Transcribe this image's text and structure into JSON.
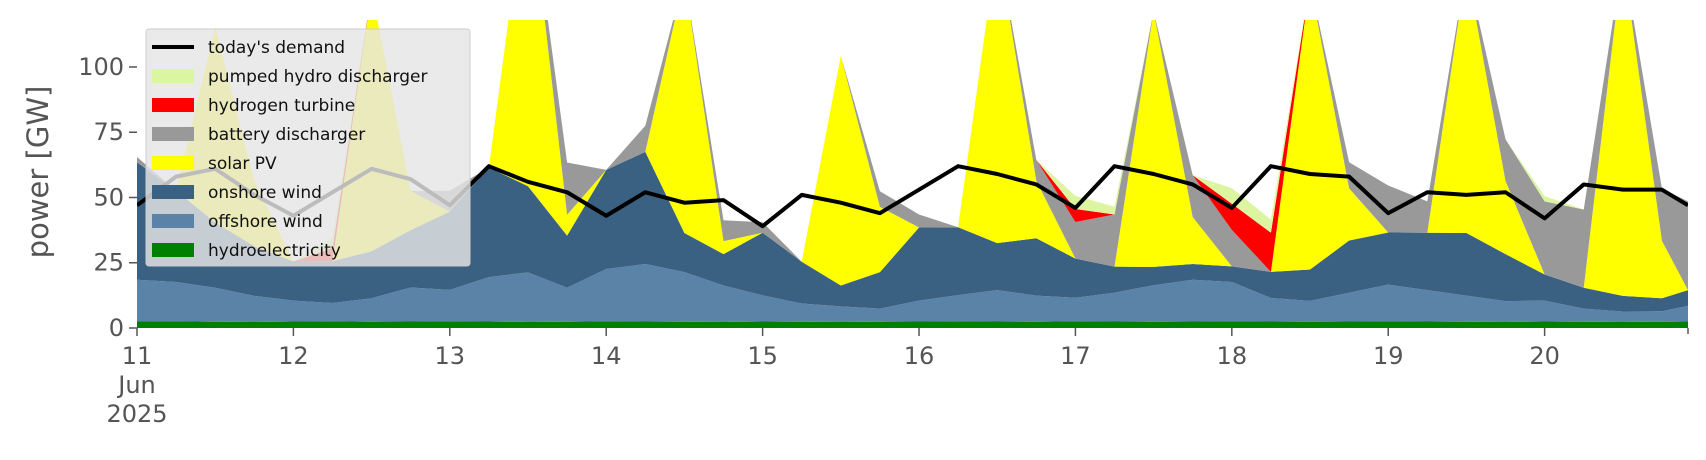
{
  "chart_data": {
    "type": "area",
    "title": "",
    "xlabel": "",
    "ylabel": "power [GW]",
    "ylim": [
      0,
      118
    ],
    "yticks": [
      0,
      25,
      50,
      75,
      100
    ],
    "ytick_labels": [
      "0",
      "25",
      "50",
      "75",
      "100"
    ],
    "x_domain": [
      "2025-06-11 00:00",
      "2025-06-20 22:00"
    ],
    "x_ticks": [
      {
        "at": "2025-06-11",
        "label": "11",
        "sublabel": "Jun",
        "sublabel2": "2025"
      },
      {
        "at": "2025-06-12",
        "label": "12"
      },
      {
        "at": "2025-06-13",
        "label": "13"
      },
      {
        "at": "2025-06-14",
        "label": "14"
      },
      {
        "at": "2025-06-15",
        "label": "15"
      },
      {
        "at": "2025-06-16",
        "label": "16"
      },
      {
        "at": "2025-06-17",
        "label": "17"
      },
      {
        "at": "2025-06-18",
        "label": "18"
      },
      {
        "at": "2025-06-19",
        "label": "19"
      },
      {
        "at": "2025-06-20",
        "label": "20"
      }
    ],
    "legend_position": "top-left",
    "x": [
      "11 00:00",
      "11 06:00",
      "11 12:00",
      "11 18:00",
      "12 00:00",
      "12 06:00",
      "12 12:00",
      "12 18:00",
      "13 00:00",
      "13 06:00",
      "13 12:00",
      "13 18:00",
      "14 00:00",
      "14 06:00",
      "14 12:00",
      "14 18:00",
      "15 00:00",
      "15 06:00",
      "15 12:00",
      "15 18:00",
      "16 00:00",
      "16 06:00",
      "16 12:00",
      "16 18:00",
      "17 00:00",
      "17 06:00",
      "17 12:00",
      "17 18:00",
      "18 00:00",
      "18 06:00",
      "18 12:00",
      "18 18:00",
      "19 00:00",
      "19 06:00",
      "19 12:00",
      "19 18:00",
      "20 00:00",
      "20 06:00",
      "20 12:00",
      "20 18:00",
      "20 22:00"
    ],
    "series": [
      {
        "name": "hydroelectricity",
        "color": "#008000",
        "values": [
          2.5,
          2.6,
          2.4,
          2.3,
          2.5,
          2.6,
          2.4,
          2.5,
          2.6,
          2.5,
          2.3,
          2.4,
          2.6,
          2.5,
          2.4,
          2.3,
          2.5,
          2.4,
          2.3,
          2.4,
          2.5,
          2.6,
          2.5,
          2.4,
          2.6,
          2.5,
          2.4,
          2.5,
          2.6,
          2.5,
          2.4,
          2.5,
          2.6,
          2.5,
          2.4,
          2.3,
          2.5,
          2.4,
          2.3,
          2.4,
          2.5
        ]
      },
      {
        "name": "offshore wind",
        "color": "#5b83a8",
        "values": [
          16,
          15,
          13,
          10,
          8,
          7,
          9,
          13,
          12,
          17,
          19,
          13,
          20,
          22,
          19,
          14,
          10,
          7,
          6,
          5,
          8,
          10,
          12,
          10,
          9,
          11,
          14,
          16,
          15,
          9,
          8,
          11,
          14,
          12,
          10,
          8,
          8,
          5,
          4,
          4,
          6
        ]
      },
      {
        "name": "onshore wind",
        "color": "#3b6182",
        "values": [
          45,
          35,
          25,
          19,
          15,
          16,
          18,
          22,
          30,
          42,
          33,
          20,
          38,
          43,
          15,
          12,
          24,
          16,
          8,
          14,
          28,
          26,
          18,
          22,
          15,
          10,
          7,
          6,
          6,
          10,
          12,
          20,
          20,
          22,
          24,
          18,
          10,
          8,
          6,
          5,
          6
        ]
      },
      {
        "name": "solar PV",
        "color": "#ffff00",
        "values": [
          0,
          0,
          75,
          25,
          0,
          0,
          100,
          15,
          0,
          0,
          120,
          8,
          0,
          0,
          98,
          5,
          0,
          0,
          88,
          25,
          0,
          0,
          115,
          22,
          0,
          0,
          98,
          18,
          0,
          0,
          110,
          20,
          0,
          0,
          102,
          28,
          0,
          0,
          130,
          22,
          0
        ]
      },
      {
        "name": "battery discharger",
        "color": "#999999",
        "values": [
          2,
          0,
          0,
          0,
          0,
          0,
          0,
          0,
          8,
          0,
          0,
          20,
          0,
          10,
          0,
          8,
          4,
          0,
          0,
          6,
          5,
          0,
          0,
          8,
          14,
          20,
          0,
          16,
          14,
          0,
          0,
          10,
          18,
          12,
          0,
          16,
          28,
          30,
          0,
          20,
          34
        ]
      },
      {
        "name": "hydrogen turbine",
        "color": "#ff0000",
        "values": [
          0,
          0,
          0,
          0,
          0,
          5,
          0,
          0,
          0,
          0,
          0,
          0,
          0,
          0,
          0,
          0,
          0,
          0,
          0,
          0,
          0,
          0,
          0,
          0,
          5,
          0,
          0,
          0,
          10,
          15,
          0,
          0,
          0,
          0,
          0,
          0,
          0,
          0,
          0,
          0,
          0
        ]
      },
      {
        "name": "pumped hydro discharger",
        "color": "#dcf5a0",
        "values": [
          0,
          0,
          0,
          0,
          0,
          4,
          0,
          0,
          0,
          0,
          0,
          0,
          0,
          0,
          0,
          0,
          0,
          0,
          0,
          0,
          0,
          0,
          0,
          0,
          5,
          3,
          0,
          0,
          6,
          5,
          0,
          0,
          0,
          0,
          0,
          0,
          2,
          0,
          0,
          0,
          0
        ]
      }
    ],
    "demand": {
      "name": "today's demand",
      "color": "#000000",
      "values": [
        47,
        58,
        61,
        51,
        43,
        52,
        61,
        57,
        47,
        62,
        56,
        52,
        43,
        52,
        48,
        49,
        39,
        51,
        48,
        44,
        53,
        62,
        59,
        55,
        46,
        62,
        59,
        55,
        46,
        62,
        59,
        58,
        44,
        52,
        51,
        52,
        42,
        55,
        53,
        53,
        47
      ]
    },
    "legend": [
      {
        "label": "today's demand",
        "kind": "line",
        "color": "#000000"
      },
      {
        "label": "pumped hydro discharger",
        "kind": "patch",
        "color": "#dcf5a0"
      },
      {
        "label": "hydrogen turbine",
        "kind": "patch",
        "color": "#ff0000"
      },
      {
        "label": "battery discharger",
        "kind": "patch",
        "color": "#999999"
      },
      {
        "label": "solar PV",
        "kind": "patch",
        "color": "#ffff00"
      },
      {
        "label": "onshore wind",
        "kind": "patch",
        "color": "#3b6182"
      },
      {
        "label": "offshore wind",
        "kind": "patch",
        "color": "#5b83a8"
      },
      {
        "label": "hydroelectricity",
        "kind": "patch",
        "color": "#008000"
      }
    ]
  }
}
